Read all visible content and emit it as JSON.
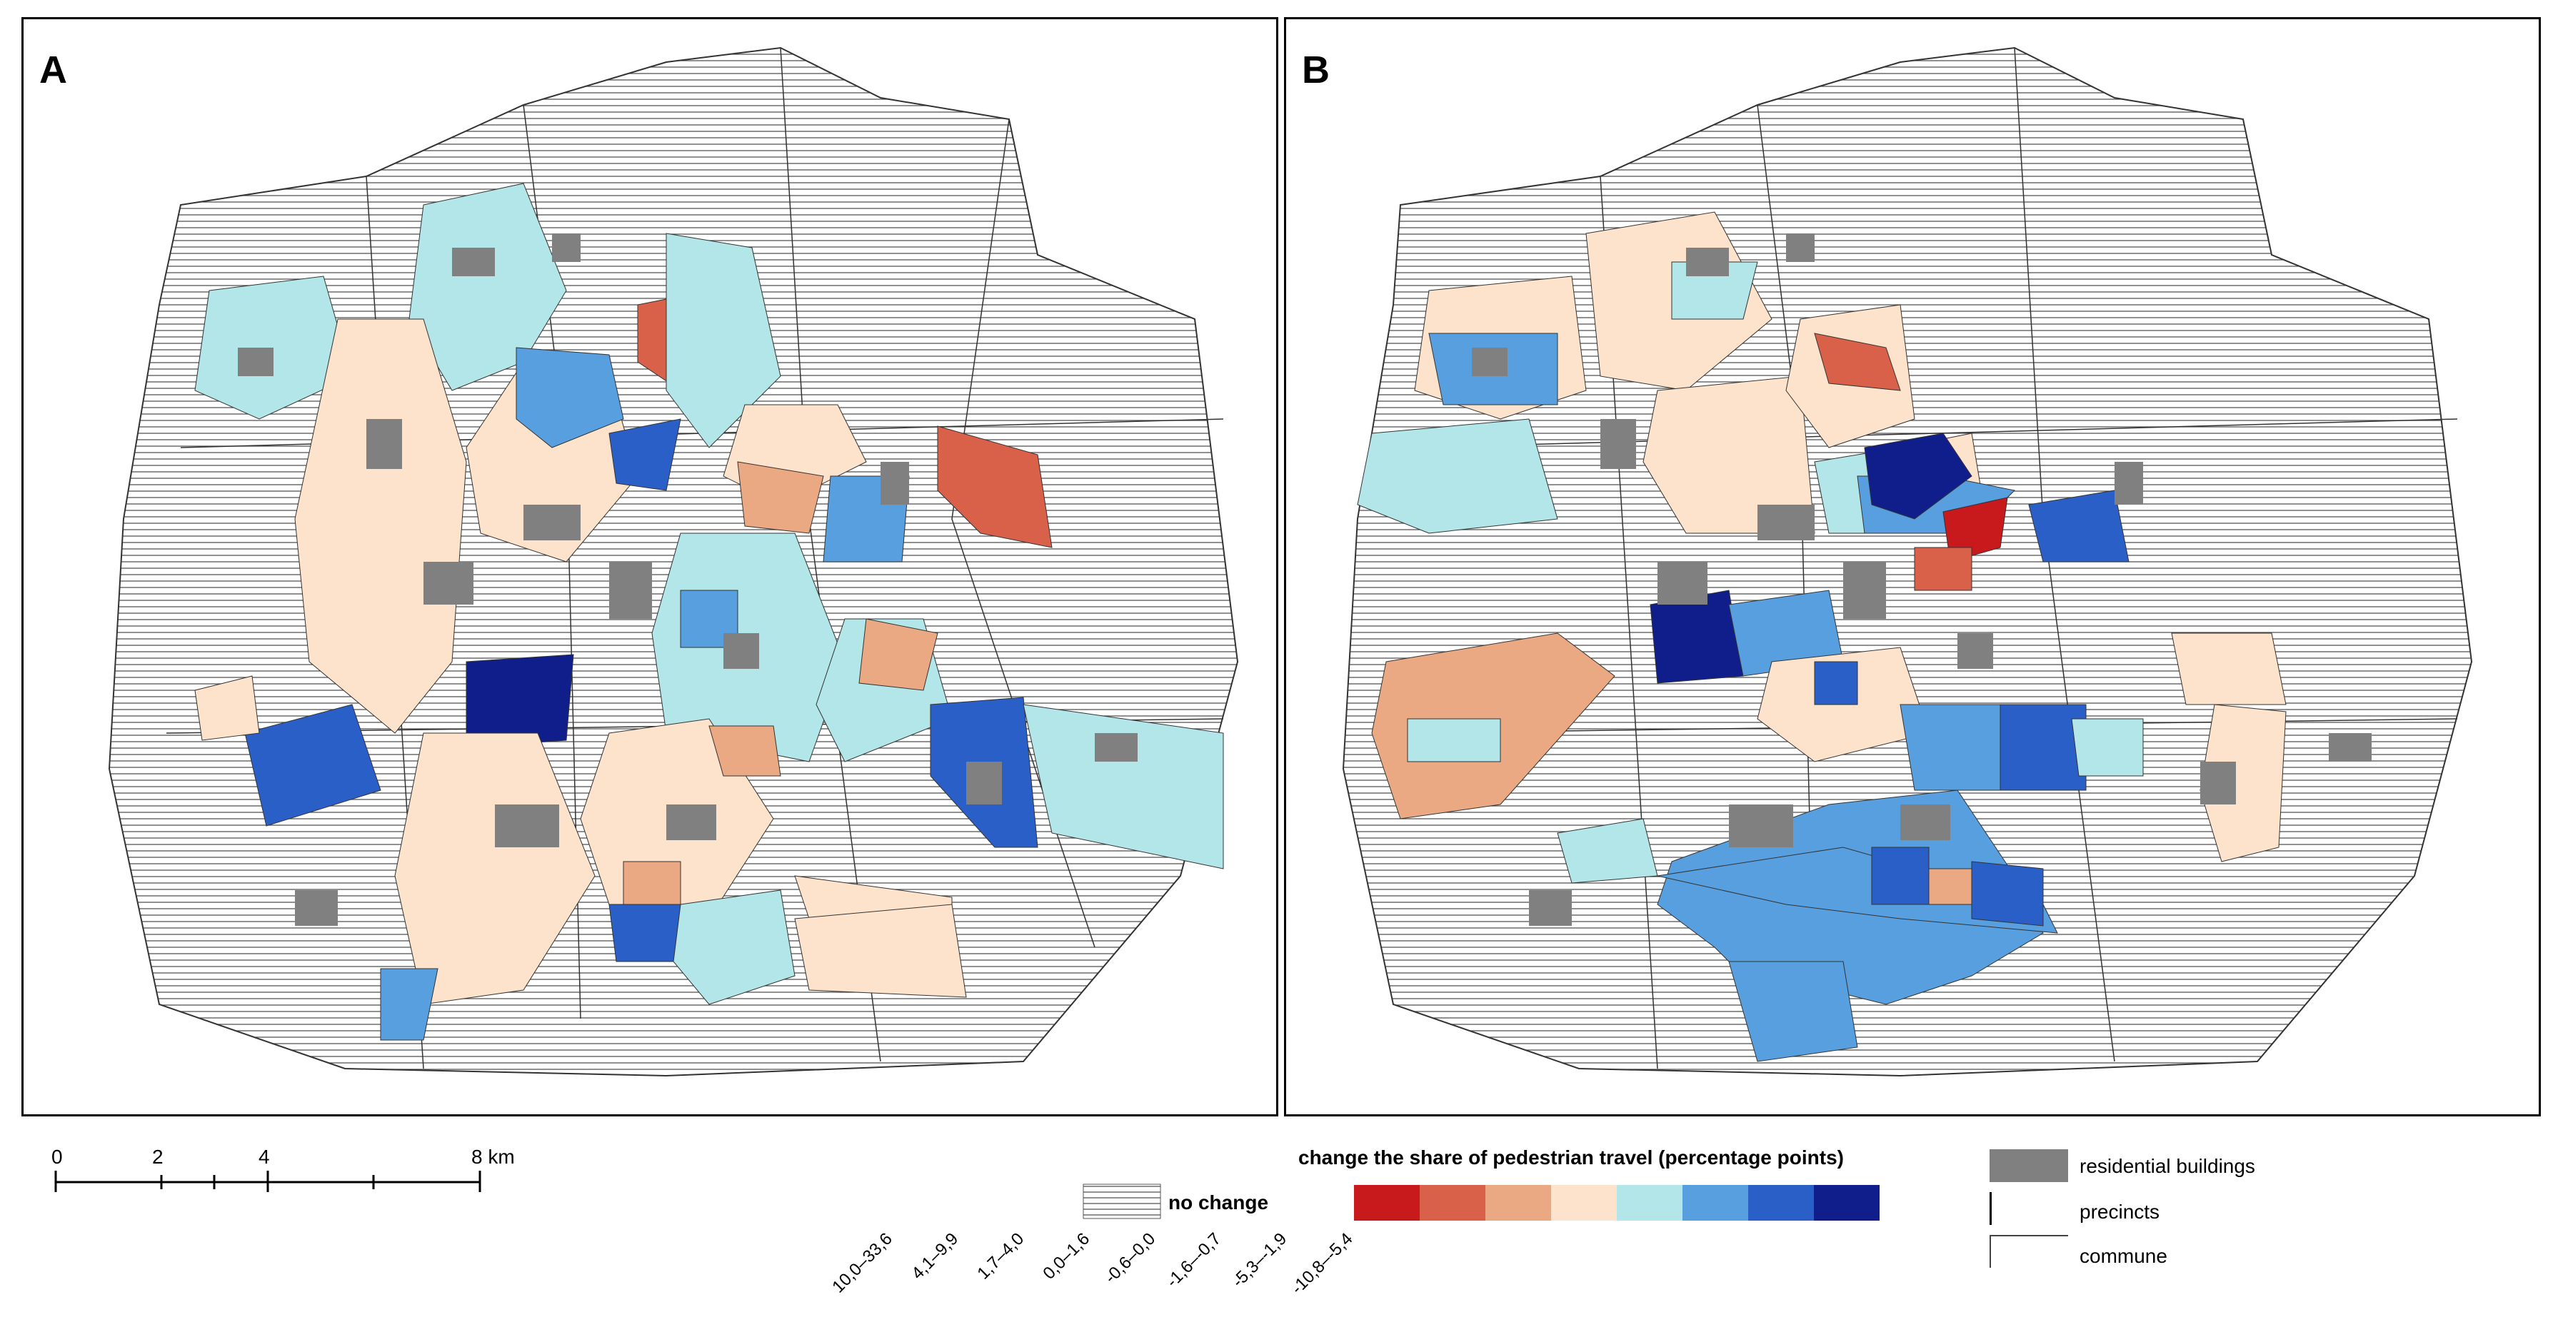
{
  "panels": [
    {
      "label": "A"
    },
    {
      "label": "B"
    }
  ],
  "scalebar": {
    "ticks": [
      "0",
      "2",
      "4",
      "8 km"
    ]
  },
  "legend": {
    "title": "change the share of pedestrian travel (percentage points)",
    "no_change": "no change",
    "classes": [
      {
        "label": "10,0–33,6",
        "color": "#c81a1c"
      },
      {
        "label": "4,1–9,9",
        "color": "#d9614a"
      },
      {
        "label": "1,7–4,0",
        "color": "#eba983"
      },
      {
        "label": "0,0–1,6",
        "color": "#fde3cc"
      },
      {
        "label": "-0,6–0,0",
        "color": "#b3e6e8"
      },
      {
        "label": "-1,6–-0,7",
        "color": "#579fde"
      },
      {
        "label": "-5,3–-1,9",
        "color": "#2a5fc8"
      },
      {
        "label": "-10,8–-5,4",
        "color": "#101e8c"
      }
    ],
    "residential": "residential buildings",
    "precincts": "precincts",
    "commune": "commune"
  },
  "colors": {
    "buildings": "#808080",
    "hatch": "#555555",
    "boundary": "#333333"
  }
}
